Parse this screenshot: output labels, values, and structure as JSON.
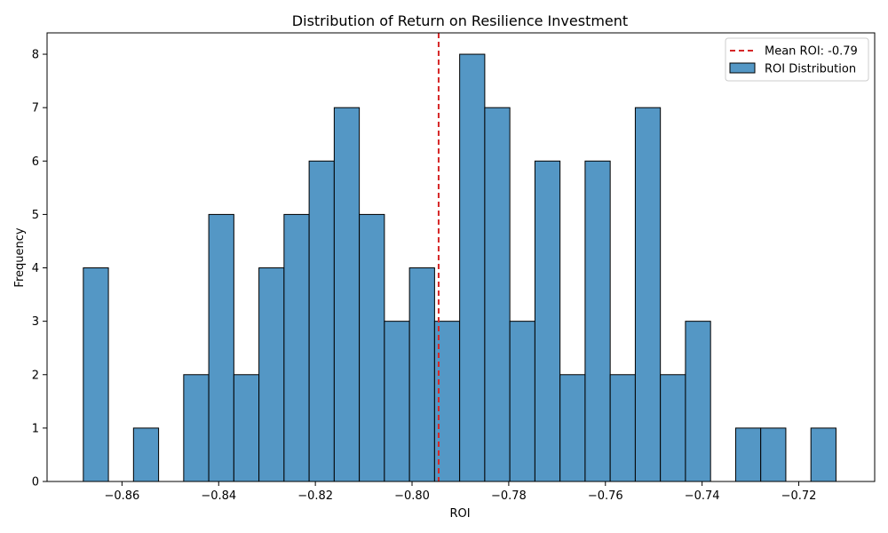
{
  "chart_data": {
    "type": "bar",
    "title": "Distribution of Return on Resilience Investment",
    "xlabel": "ROI",
    "ylabel": "Frequency",
    "xlim": [
      -0.8755,
      -0.7043
    ],
    "ylim": [
      0,
      8.4
    ],
    "x_ticks": [
      -0.86,
      -0.84,
      -0.82,
      -0.8,
      -0.78,
      -0.76,
      -0.74,
      -0.72
    ],
    "x_tick_labels": [
      "−0.86",
      "−0.84",
      "−0.82",
      "−0.80",
      "−0.78",
      "−0.76",
      "−0.74",
      "−0.72"
    ],
    "y_ticks": [
      0,
      1,
      2,
      3,
      4,
      5,
      6,
      7,
      8
    ],
    "y_tick_labels": [
      "0",
      "1",
      "2",
      "3",
      "4",
      "5",
      "6",
      "7",
      "8"
    ],
    "bins": {
      "start": -0.868,
      "width": 0.00519,
      "counts": [
        4,
        0,
        1,
        0,
        2,
        5,
        2,
        4,
        5,
        6,
        7,
        5,
        3,
        4,
        3,
        8,
        7,
        3,
        6,
        2,
        6,
        2,
        7,
        2,
        3,
        0,
        1,
        1,
        0,
        1
      ]
    },
    "mean_line": {
      "x": -0.7945,
      "color": "#d62728",
      "label": "Mean ROI: -0.79"
    },
    "series": [
      {
        "name": "ROI Distribution",
        "color": "#5497c5",
        "edgecolor": "#000000"
      }
    ],
    "legend": {
      "placement": "upper-right"
    }
  }
}
